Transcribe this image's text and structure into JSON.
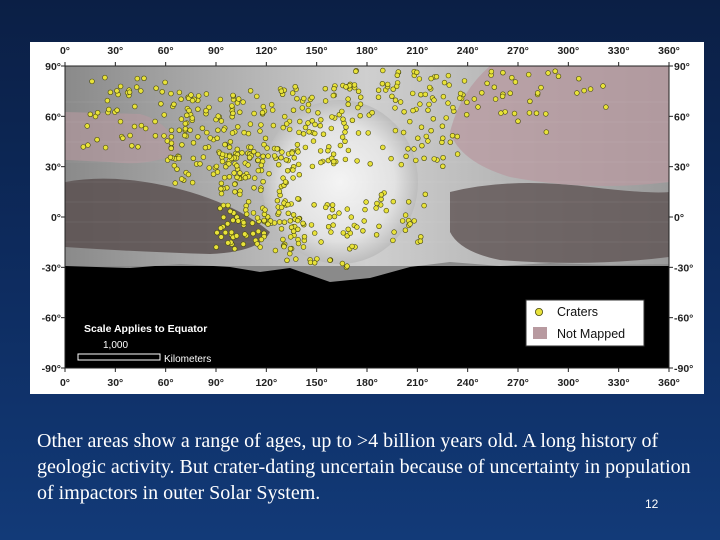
{
  "map": {
    "top_axis_labels": [
      "0°",
      "30°",
      "60°",
      "90°",
      "120°",
      "150°",
      "180°",
      "210°",
      "240°",
      "270°",
      "300°",
      "330°",
      "360°"
    ],
    "bottom_axis_labels": [
      "0°",
      "30°",
      "60°",
      "90°",
      "120°",
      "150°",
      "180°",
      "210°",
      "240°",
      "270°",
      "300°",
      "330°",
      "360°"
    ],
    "lat_labels": [
      "90°",
      "60°",
      "30°",
      "0°",
      "-30°",
      "-60°",
      "-90°"
    ],
    "lon_range": [
      0,
      360
    ],
    "lat_range": [
      -90,
      90
    ],
    "colors": {
      "crater_fill": "#e8e23a",
      "crater_stroke": "#4a4a10",
      "not_mapped": "#b89aa0",
      "unlit": "#000000",
      "bright_plain": "#e6e6e6"
    },
    "legend": {
      "craters_label": "Craters",
      "not_mapped_label": "Not Mapped"
    },
    "scale": {
      "title": "Scale Applies to Equator",
      "value": "1,000",
      "unit": "Kilometers"
    }
  },
  "caption": "Other areas show a range of ages, up to >4 billion years old.  A long history of geologic activity.  But crater-dating uncertain because of uncertainty in population of impactors in outer Solar System.",
  "slide_number": "12"
}
